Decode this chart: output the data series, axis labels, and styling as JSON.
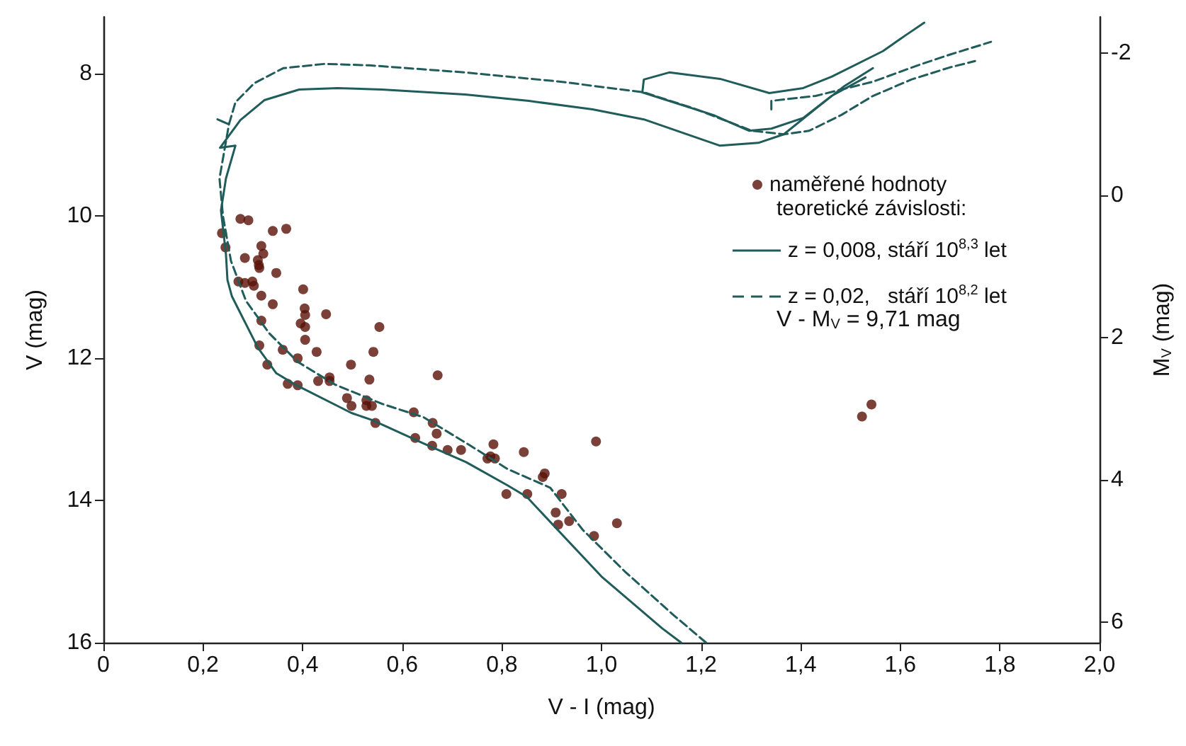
{
  "chart_data": {
    "type": "scatter",
    "xlabel": "V - I (mag)",
    "ylabel": "V (mag)",
    "y2label": "M$_{V}$ (mag)",
    "legend_title": "teoretické závislosti:",
    "annotations": [
      "V - M$_{V}$ = 9,71 mag"
    ],
    "xlim": [
      0,
      2
    ],
    "xticks": [
      0,
      {
        "value": 0.2,
        "label": "0,2"
      },
      {
        "value": 0.4,
        "label": "0,4"
      },
      {
        "value": 0.6,
        "label": "0,6"
      },
      {
        "value": 0.8,
        "label": "0,8"
      },
      {
        "value": 1,
        "label": "1,0"
      },
      {
        "value": 1.2,
        "label": "1,2"
      },
      {
        "value": 1.4,
        "label": "1,4"
      },
      {
        "value": 1.6,
        "label": "1,6"
      },
      {
        "value": 1.8,
        "label": "1,8"
      },
      {
        "value": 2,
        "label": "2,0"
      }
    ],
    "ylim": [
      16,
      7.2
    ],
    "yticks": [
      8,
      10,
      12,
      14,
      16
    ],
    "y2lim": [
      6.29,
      -2.51
    ],
    "y2ticks": [
      -2,
      0,
      2,
      4,
      6
    ],
    "grid": false,
    "legend": "right",
    "series": [
      {
        "name": "naměřené hodnoty",
        "marker": "circle",
        "color": "#5a1208",
        "x": [
          0.275,
          0.291,
          0.238,
          0.34,
          0.367,
          0.245,
          0.317,
          0.321,
          0.284,
          0.31,
          0.312,
          0.313,
          0.347,
          0.271,
          0.284,
          0.299,
          0.302,
          0.401,
          0.317,
          0.34,
          0.404,
          0.405,
          0.447,
          0.317,
          0.396,
          0.405,
          0.554,
          0.405,
          0.313,
          0.36,
          0.428,
          0.542,
          0.39,
          0.329,
          0.497,
          0.431,
          0.454,
          0.454,
          0.534,
          0.671,
          0.37,
          0.39,
          0.489,
          0.498,
          0.528,
          0.528,
          0.539,
          0.546,
          0.623,
          0.661,
          0.669,
          0.626,
          0.66,
          0.691,
          0.718,
          0.783,
          0.771,
          0.777,
          0.786,
          0.844,
          0.989,
          0.886,
          0.882,
          0.809,
          0.851,
          0.92,
          0.908,
          0.935,
          0.913,
          1.031,
          0.985,
          1.542,
          1.523
        ],
        "values": [
          10.04,
          10.06,
          10.24,
          10.21,
          10.18,
          10.44,
          10.42,
          10.53,
          10.59,
          10.62,
          10.69,
          10.73,
          10.8,
          10.92,
          10.94,
          10.92,
          10.98,
          11.03,
          11.12,
          11.24,
          11.3,
          11.39,
          11.38,
          11.47,
          11.51,
          11.56,
          11.56,
          11.74,
          11.82,
          11.88,
          11.91,
          11.91,
          12.0,
          12.09,
          12.09,
          12.32,
          12.27,
          12.32,
          12.3,
          12.24,
          12.36,
          12.38,
          12.56,
          12.67,
          12.59,
          12.67,
          12.67,
          12.91,
          12.76,
          12.91,
          13.06,
          13.12,
          13.23,
          13.29,
          13.29,
          13.21,
          13.41,
          13.38,
          13.41,
          13.32,
          13.17,
          13.62,
          13.67,
          13.91,
          13.91,
          13.91,
          14.17,
          14.29,
          14.34,
          14.32,
          14.5,
          12.65,
          12.82
        ]
      },
      {
        "name": "z = 0,008, stáří 10$^{8,3}$ let",
        "type": "line",
        "marker": "none",
        "line_style": "solid",
        "color": "#1f5c5a",
        "x": [
          1.16,
          1.122,
          1.0,
          0.85,
          0.812,
          0.728,
          0.643,
          0.54,
          0.498,
          0.385,
          0.347,
          0.31,
          0.258,
          0.249,
          0.246,
          0.236,
          0.246,
          0.265,
          0.234,
          0.275,
          0.323,
          0.393,
          0.47,
          0.559,
          0.726,
          0.854,
          0.982,
          1.085,
          1.238,
          1.315,
          1.366,
          1.43,
          1.488,
          1.545,
          null,
          1.648,
          1.61,
          1.565,
          1.462,
          1.405,
          1.337,
          1.238,
          1.136,
          1.085,
          1.082,
          1.225,
          1.296,
          1.341,
          1.405,
          1.462,
          1.53
        ],
        "values": [
          16,
          15.8,
          15.07,
          13.95,
          13.79,
          13.46,
          13.2,
          12.87,
          12.77,
          12.37,
          12.21,
          11.85,
          11.13,
          10.9,
          10.54,
          9.92,
          9.47,
          9.01,
          9.04,
          8.65,
          8.37,
          8.22,
          8.2,
          8.22,
          8.29,
          8.38,
          8.5,
          8.64,
          9.01,
          8.97,
          8.85,
          8.49,
          8.17,
          7.92,
          null,
          7.28,
          7.46,
          7.68,
          8.04,
          8.2,
          8.27,
          8.07,
          7.98,
          8.08,
          8.26,
          8.58,
          8.8,
          8.77,
          8.62,
          8.31,
          8.05
        ]
      },
      {
        "name": "z = 0,02,   stáří 10$^{8,2}$ let",
        "type": "line",
        "marker": "none",
        "line_style": "dashed",
        "color": "#1f5c5a",
        "x": [
          1.21,
          1.141,
          1.047,
          0.962,
          0.897,
          0.812,
          0.737,
          0.643,
          0.559,
          0.465,
          0.39,
          0.333,
          0.286,
          0.256,
          0.24,
          0.233,
          0.252,
          0.229,
          0.252,
          0.265,
          0.303,
          0.361,
          0.444,
          0.534,
          0.726,
          0.918,
          1.085,
          1.187,
          1.302,
          1.366,
          1.417,
          1.481,
          1.545,
          1.622,
          1.699,
          1.75,
          null,
          1.341,
          1.341,
          1.43,
          1.545,
          1.635,
          1.699,
          1.782
        ],
        "values": [
          16,
          15.59,
          15.0,
          14.41,
          13.82,
          13.56,
          13.23,
          12.83,
          12.64,
          12.37,
          12.05,
          11.65,
          11.19,
          10.63,
          10.0,
          9.47,
          8.71,
          8.64,
          8.71,
          8.4,
          8.13,
          7.92,
          7.86,
          7.88,
          7.98,
          8.11,
          8.26,
          8.49,
          8.8,
          8.85,
          8.8,
          8.58,
          8.31,
          8.08,
          7.91,
          7.82,
          null,
          8.5,
          8.38,
          8.31,
          8.11,
          7.88,
          7.73,
          7.55
        ]
      }
    ]
  }
}
